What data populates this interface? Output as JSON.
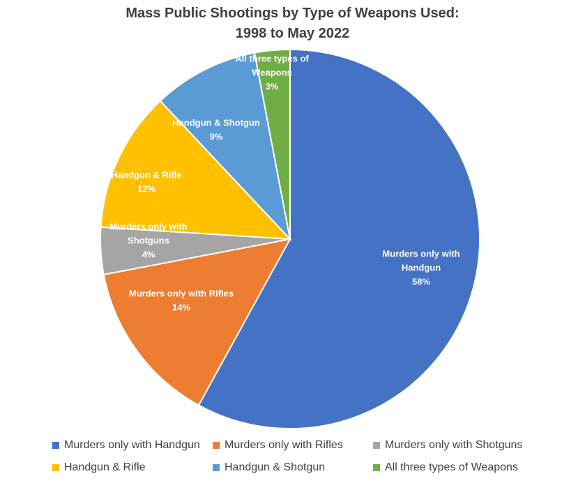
{
  "chart_data": {
    "type": "pie",
    "title": "Mass Public Shootings by Type of Weapons Used:",
    "subtitle": "1998 to May 2022",
    "slices": [
      {
        "name": "Murders only with Handgun",
        "label_lines": [
          "Murders only with",
          "Handgun"
        ],
        "value": 58,
        "value_label": "58%",
        "color": "#4472c4"
      },
      {
        "name": "Murders only with Rifles",
        "label_lines": [
          "Murders only with Rifles"
        ],
        "value": 14,
        "value_label": "14%",
        "color": "#ed7d31"
      },
      {
        "name": "Murders only with Shotguns",
        "label_lines": [
          "Murders only with",
          "Shotguns"
        ],
        "value": 4,
        "value_label": "4%",
        "color": "#a5a5a5"
      },
      {
        "name": "Handgun & Rifle",
        "label_lines": [
          "Handgun & Rifle"
        ],
        "value": 12,
        "value_label": "12%",
        "color": "#ffc000"
      },
      {
        "name": "Handgun & Shotgun",
        "label_lines": [
          "Handgun & Shotgun"
        ],
        "value": 9,
        "value_label": "9%",
        "color": "#5b9bd5"
      },
      {
        "name": "All three types of Weapons",
        "label_lines": [
          "All three types of",
          "Weapons"
        ],
        "value": 3,
        "value_label": "3%",
        "color": "#70ad47"
      }
    ],
    "legend_position": "bottom"
  }
}
